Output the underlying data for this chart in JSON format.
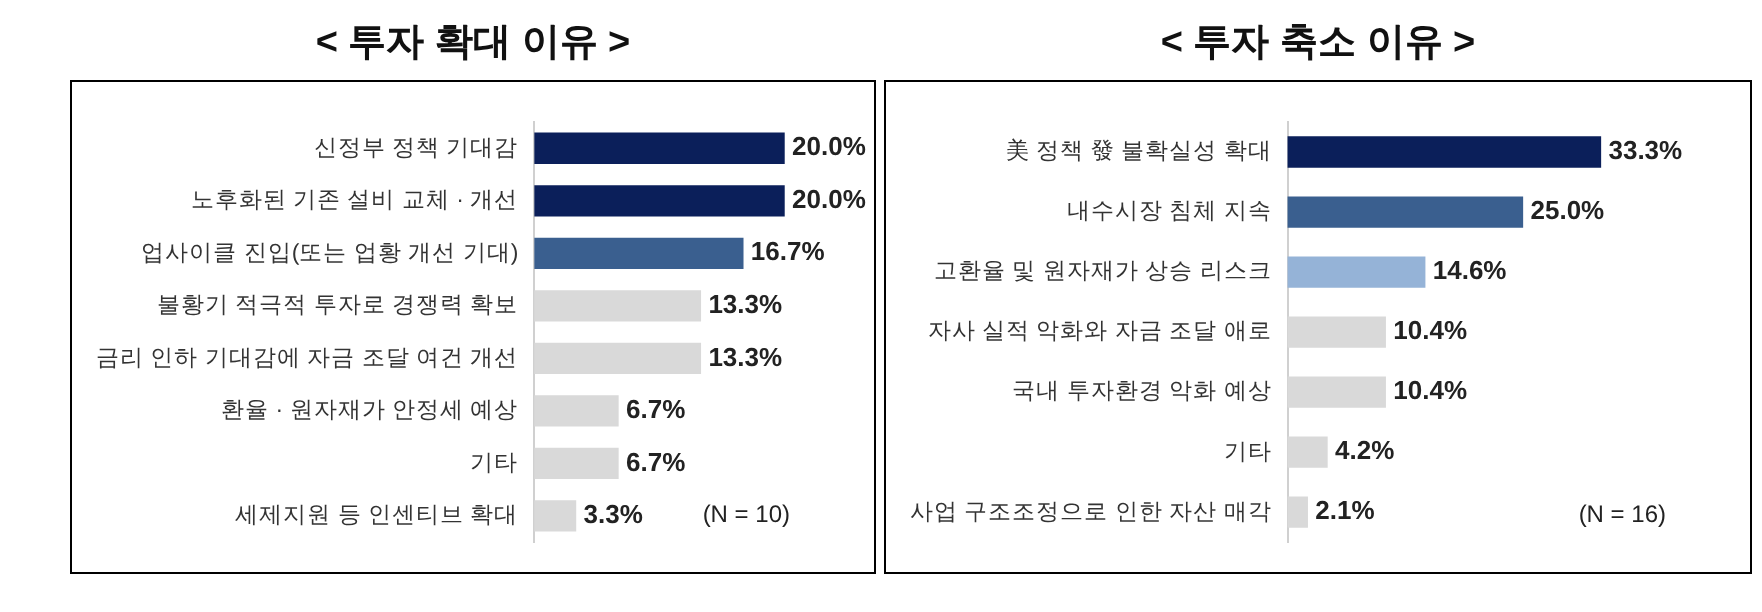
{
  "chart_data": [
    {
      "type": "bar",
      "orientation": "horizontal",
      "title": "< 투자 확대 이유 >",
      "categories": [
        "신정부 정책 기대감",
        "노후화된 기존 설비 교체 · 개선",
        "업사이클 진입(또는 업황 개선 기대)",
        "불황기 적극적 투자로 경쟁력 확보",
        "금리 인하 기대감에 자금 조달 여건 개선",
        "환율 · 원자재가 안정세 예상",
        "기타",
        "세제지원 등 인센티브 확대"
      ],
      "values": [
        20.0,
        20.0,
        16.7,
        13.3,
        13.3,
        6.7,
        6.7,
        3.3
      ],
      "colors": [
        "#0b1f5a",
        "#0b1f5a",
        "#3a5f8f",
        "#d9d9d9",
        "#d9d9d9",
        "#d9d9d9",
        "#d9d9d9",
        "#d9d9d9"
      ],
      "value_labels": [
        "20.0%",
        "20.0%",
        "16.7%",
        "13.3%",
        "13.3%",
        "6.7%",
        "6.7%",
        "3.3%"
      ],
      "annotations": [
        "(N = 10)"
      ]
    },
    {
      "type": "bar",
      "orientation": "horizontal",
      "title": "< 투자 축소 이유 >",
      "categories": [
        "美 정책 發 불확실성 확대",
        "내수시장 침체 지속",
        "고환율 및 원자재가 상승 리스크",
        "자사 실적 악화와 자금 조달 애로",
        "국내 투자환경 악화 예상",
        "기타",
        "사업 구조조정으로 인한 자산 매각"
      ],
      "values": [
        33.3,
        25.0,
        14.6,
        10.4,
        10.4,
        4.2,
        2.1
      ],
      "colors": [
        "#0b1f5a",
        "#3a5f8f",
        "#95b3d7",
        "#d9d9d9",
        "#d9d9d9",
        "#d9d9d9",
        "#d9d9d9"
      ],
      "value_labels": [
        "33.3%",
        "25.0%",
        "14.6%",
        "10.4%",
        "10.4%",
        "4.2%",
        "2.1%"
      ],
      "annotations": [
        "(N = 16)"
      ]
    }
  ]
}
